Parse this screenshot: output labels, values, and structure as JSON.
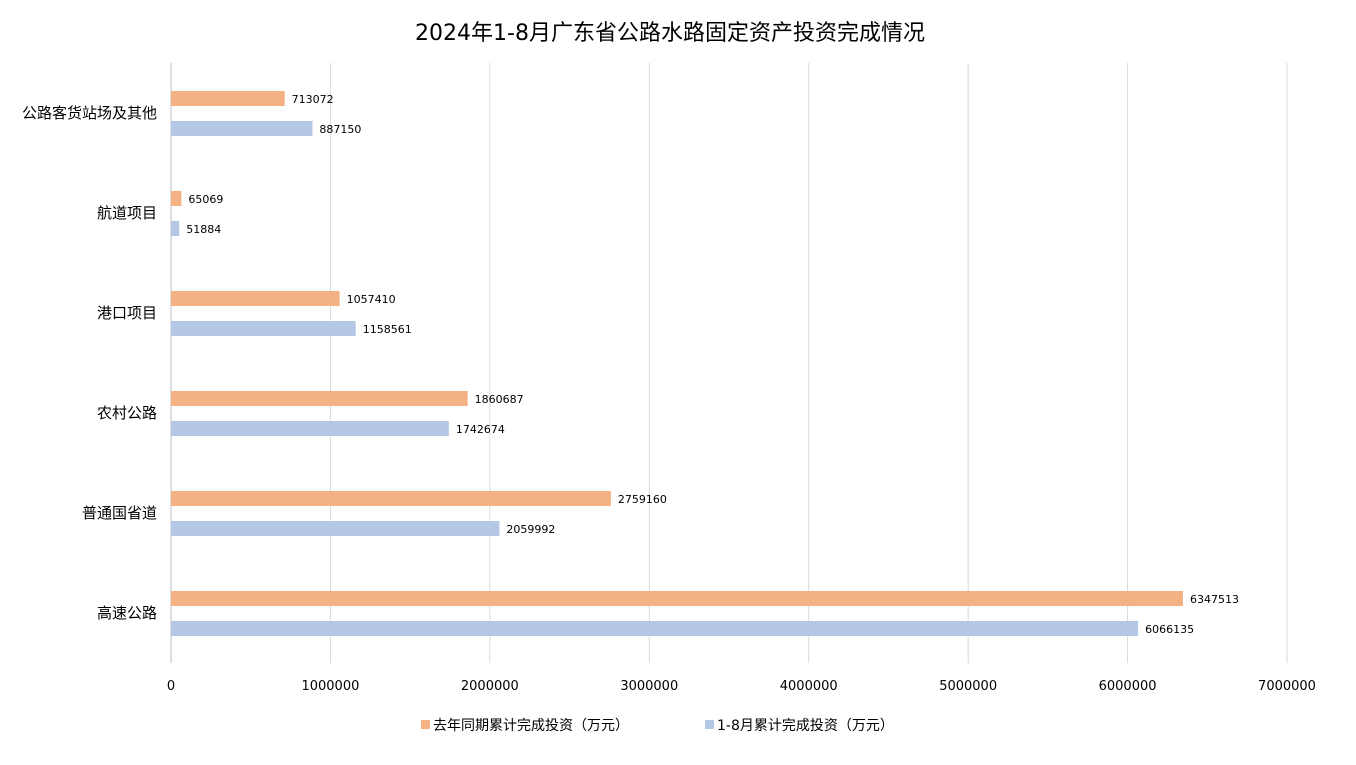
{
  "chart_data": {
    "type": "bar",
    "orientation": "horizontal",
    "title": "2024年1-8月广东省公路水路固定资产投资完成情况",
    "categories": [
      "公路客货站场及其他",
      "航道项目",
      "港口项目",
      "农村公路",
      "普通国省道",
      "高速公路"
    ],
    "series": [
      {
        "name": "去年同期累计完成投资（万元）",
        "color": "#F4B183",
        "values": [
          713072,
          65069,
          1057410,
          1860687,
          2759160,
          6347513
        ]
      },
      {
        "name": "1-8月累计完成投资（万元）",
        "color": "#B4C7E7",
        "values": [
          887150,
          51884,
          1158561,
          1742674,
          2059992,
          6066135
        ]
      }
    ],
    "xlim": [
      0,
      7000000
    ],
    "xticks": [
      "0",
      "1000000",
      "2000000",
      "3000000",
      "4000000",
      "5000000",
      "6000000",
      "7000000"
    ],
    "grid": true,
    "legend": "bottom",
    "data_labels": true
  }
}
